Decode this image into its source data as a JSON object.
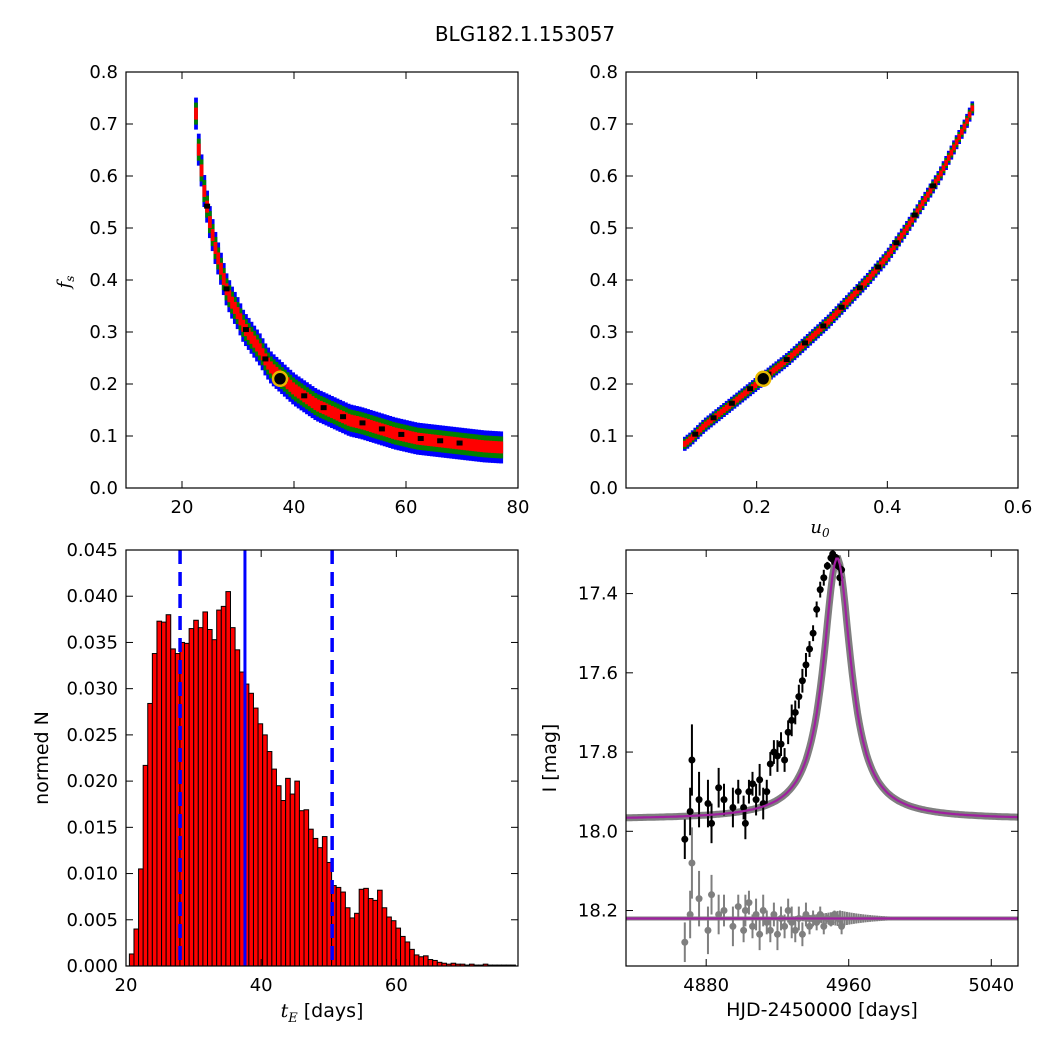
{
  "title": "BLG182.1.153057",
  "chart_data": [
    {
      "type": "heatmap",
      "panel": "tE-fs",
      "xlabel": "",
      "ylabel": "f_s",
      "xlim": [
        10,
        80
      ],
      "ylim": [
        0.0,
        0.8
      ],
      "xticks": [
        "20",
        "40",
        "60",
        "80"
      ],
      "yticks": [
        "0.0",
        "0.1",
        "0.2",
        "0.3",
        "0.4",
        "0.5",
        "0.6",
        "0.7",
        "0.8"
      ],
      "best_fit": [
        37.5,
        0.21
      ],
      "band_color": {
        "outer": "#0000ff",
        "middle": "#007f00",
        "inner": "#ff0000",
        "core": "#000000"
      },
      "centerline": [
        [
          22.5,
          0.72
        ],
        [
          23,
          0.65
        ],
        [
          24,
          0.57
        ],
        [
          25,
          0.51
        ],
        [
          26,
          0.46
        ],
        [
          27,
          0.42
        ],
        [
          28,
          0.38
        ],
        [
          29,
          0.355
        ],
        [
          30,
          0.335
        ],
        [
          31,
          0.31
        ],
        [
          32,
          0.295
        ],
        [
          33,
          0.28
        ],
        [
          34,
          0.265
        ],
        [
          35,
          0.245
        ],
        [
          36,
          0.23
        ],
        [
          38,
          0.21
        ],
        [
          40,
          0.19
        ],
        [
          42,
          0.175
        ],
        [
          44,
          0.16
        ],
        [
          46,
          0.15
        ],
        [
          48,
          0.14
        ],
        [
          50,
          0.13
        ],
        [
          52,
          0.125
        ],
        [
          55,
          0.115
        ],
        [
          58,
          0.105
        ],
        [
          62,
          0.095
        ],
        [
          66,
          0.09
        ],
        [
          70,
          0.085
        ],
        [
          74,
          0.08
        ],
        [
          77,
          0.078
        ]
      ]
    },
    {
      "type": "heatmap",
      "panel": "u0-fs",
      "xlabel": "u_0",
      "ylabel": "",
      "xlim": [
        0.0,
        0.6
      ],
      "ylim": [
        0.0,
        0.8
      ],
      "xticks": [
        "0.2",
        "0.4",
        "0.6"
      ],
      "yticks": [
        "0.0",
        "0.1",
        "0.2",
        "0.3",
        "0.4",
        "0.5",
        "0.6",
        "0.7",
        "0.8"
      ],
      "best_fit": [
        0.21,
        0.21
      ],
      "centerline": [
        [
          0.09,
          0.085
        ],
        [
          0.1,
          0.095
        ],
        [
          0.12,
          0.12
        ],
        [
          0.14,
          0.14
        ],
        [
          0.16,
          0.16
        ],
        [
          0.18,
          0.18
        ],
        [
          0.2,
          0.2
        ],
        [
          0.22,
          0.22
        ],
        [
          0.25,
          0.25
        ],
        [
          0.28,
          0.285
        ],
        [
          0.31,
          0.32
        ],
        [
          0.34,
          0.36
        ],
        [
          0.37,
          0.4
        ],
        [
          0.4,
          0.445
        ],
        [
          0.43,
          0.5
        ],
        [
          0.46,
          0.56
        ],
        [
          0.48,
          0.6
        ],
        [
          0.5,
          0.65
        ],
        [
          0.52,
          0.7
        ],
        [
          0.53,
          0.73
        ]
      ]
    },
    {
      "type": "bar",
      "panel": "tE-histogram",
      "xlabel": "[days]",
      "xlabel_symbol": "t_E",
      "ylabel": "normed N",
      "xlim": [
        20,
        78
      ],
      "ylim": [
        0.0,
        0.045
      ],
      "xticks": [
        "20",
        "40",
        "60"
      ],
      "yticks": [
        "0.000",
        "0.005",
        "0.010",
        "0.015",
        "0.020",
        "0.025",
        "0.030",
        "0.035",
        "0.040",
        "0.045"
      ],
      "bin_start": 20.5,
      "bin_width": 0.68,
      "values": [
        0.0013,
        0.004,
        0.0105,
        0.0217,
        0.0284,
        0.0338,
        0.0373,
        0.0372,
        0.038,
        0.0343,
        0.0338,
        0.035,
        0.0349,
        0.0365,
        0.0374,
        0.0366,
        0.0383,
        0.0364,
        0.0353,
        0.0385,
        0.0389,
        0.0405,
        0.0366,
        0.0342,
        0.0318,
        0.0305,
        0.0295,
        0.0279,
        0.0262,
        0.025,
        0.0232,
        0.0213,
        0.0195,
        0.0179,
        0.0203,
        0.0186,
        0.02,
        0.0168,
        0.0169,
        0.0148,
        0.0138,
        0.0128,
        0.014,
        0.0112,
        0.0087,
        0.0085,
        0.008,
        0.0063,
        0.0052,
        0.0057,
        0.0083,
        0.0084,
        0.0073,
        0.0071,
        0.0082,
        0.0063,
        0.0053,
        0.0049,
        0.0041,
        0.0032,
        0.0026,
        0.0018,
        0.0012,
        0.001,
        0.0011,
        0.0007,
        0.0006,
        0.0004,
        0.0003,
        0.0002,
        0.0003,
        0.0002,
        0.0002,
        0.0001,
        0.0002,
        0.0001,
        0.0001,
        0.0002,
        0.0001,
        0.0001,
        0.0001,
        0.0001,
        0.0001,
        0.0001
      ],
      "bar_color": "#ff0000",
      "median": 37.6,
      "interval": [
        28.0,
        50.5
      ]
    },
    {
      "type": "line",
      "panel": "light-curve",
      "xlabel": "HJD-2450000 [days]",
      "ylabel": "I [mag]",
      "xlim": [
        4835,
        5055
      ],
      "ylim": [
        18.34,
        17.29
      ],
      "xticks": [
        "4880",
        "4960",
        "5040"
      ],
      "yticks": [
        "17.4",
        "17.6",
        "17.8",
        "18.0",
        "18.2"
      ],
      "model": {
        "t0": 4953.5,
        "baseline": 17.97,
        "peak": 17.31,
        "tau": 9.5,
        "residual_zero": 18.22,
        "color": "#a020a0",
        "band_color": "#7f7f7f"
      },
      "series": [
        {
          "name": "data",
          "color": "#000000",
          "points": [
            [
              4868,
              18.02,
              0.05
            ],
            [
              4871,
              17.95,
              0.06
            ],
            [
              4872,
              17.82,
              0.09
            ],
            [
              4876,
              17.92,
              0.07
            ],
            [
              4881,
              17.93,
              0.06
            ],
            [
              4883,
              17.98,
              0.05
            ],
            [
              4887,
              17.89,
              0.05
            ],
            [
              4890,
              17.92,
              0.04
            ],
            [
              4895,
              17.94,
              0.05
            ],
            [
              4898,
              17.9,
              0.03
            ],
            [
              4901,
              17.94,
              0.03
            ],
            [
              4902,
              17.98,
              0.04
            ],
            [
              4904,
              17.9,
              0.03
            ],
            [
              4906,
              17.88,
              0.03
            ],
            [
              4908,
              17.92,
              0.04
            ],
            [
              4910,
              17.87,
              0.04
            ],
            [
              4912,
              17.93,
              0.04
            ],
            [
              4914,
              17.9,
              0.03
            ],
            [
              4916,
              17.83,
              0.03
            ],
            [
              4918,
              17.8,
              0.03
            ],
            [
              4920,
              17.81,
              0.04
            ],
            [
              4922,
              17.78,
              0.03
            ],
            [
              4924,
              17.82,
              0.03
            ],
            [
              4926,
              17.75,
              0.03
            ],
            [
              4928,
              17.72,
              0.04
            ],
            [
              4930,
              17.7,
              0.03
            ],
            [
              4932,
              17.66,
              0.03
            ],
            [
              4934,
              17.62,
              0.03
            ],
            [
              4936,
              17.58,
              0.03
            ],
            [
              4938,
              17.54,
              0.02
            ],
            [
              4940,
              17.5,
              0.02
            ],
            [
              4942,
              17.44,
              0.02
            ],
            [
              4944,
              17.39,
              0.02
            ],
            [
              4946,
              17.36,
              0.02
            ],
            [
              4948,
              17.33,
              0.01
            ],
            [
              4950,
              17.31,
              0.01
            ],
            [
              4951,
              17.3,
              0.01
            ],
            [
              4952,
              17.32,
              0.01
            ],
            [
              4953,
              17.31,
              0.01
            ],
            [
              4954,
              17.33,
              0.01
            ],
            [
              4955,
              17.36,
              0.02
            ],
            [
              4956,
              17.34,
              0.01
            ]
          ]
        },
        {
          "name": "residuals",
          "color": "#7f7f7f",
          "points": [
            [
              4868,
              18.28,
              0.05
            ],
            [
              4871,
              18.21,
              0.06
            ],
            [
              4872,
              18.08,
              0.09
            ],
            [
              4876,
              18.17,
              0.07
            ],
            [
              4881,
              18.25,
              0.06
            ],
            [
              4883,
              18.16,
              0.05
            ],
            [
              4887,
              18.21,
              0.05
            ],
            [
              4890,
              18.2,
              0.04
            ],
            [
              4895,
              18.24,
              0.05
            ],
            [
              4898,
              18.19,
              0.03
            ],
            [
              4901,
              18.25,
              0.03
            ],
            [
              4902,
              18.2,
              0.04
            ],
            [
              4904,
              18.18,
              0.03
            ],
            [
              4906,
              18.24,
              0.03
            ],
            [
              4908,
              18.21,
              0.04
            ],
            [
              4910,
              18.26,
              0.04
            ],
            [
              4912,
              18.2,
              0.04
            ],
            [
              4914,
              18.23,
              0.03
            ],
            [
              4916,
              18.25,
              0.03
            ],
            [
              4918,
              18.21,
              0.03
            ],
            [
              4920,
              18.26,
              0.04
            ],
            [
              4922,
              18.22,
              0.03
            ],
            [
              4924,
              18.24,
              0.03
            ],
            [
              4926,
              18.2,
              0.03
            ],
            [
              4928,
              18.23,
              0.04
            ],
            [
              4930,
              18.25,
              0.03
            ],
            [
              4932,
              18.22,
              0.03
            ],
            [
              4934,
              18.26,
              0.03
            ],
            [
              4936,
              18.21,
              0.03
            ],
            [
              4938,
              18.24,
              0.02
            ],
            [
              4940,
              18.22,
              0.02
            ],
            [
              4942,
              18.23,
              0.02
            ],
            [
              4944,
              18.21,
              0.02
            ],
            [
              4946,
              18.24,
              0.02
            ],
            [
              4948,
              18.22,
              0.01
            ],
            [
              4950,
              18.23,
              0.01
            ],
            [
              4952,
              18.21,
              0.01
            ],
            [
              4954,
              18.22,
              0.01
            ],
            [
              4956,
              18.24,
              0.02
            ]
          ]
        }
      ]
    }
  ]
}
